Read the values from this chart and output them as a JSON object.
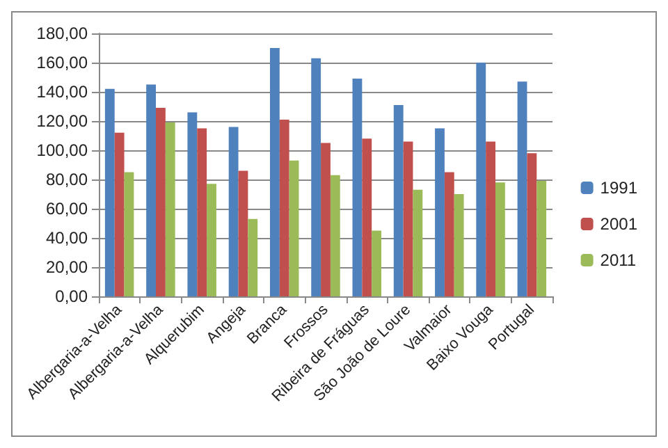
{
  "chart_data": {
    "type": "bar",
    "categories": [
      "Albergaria-a-Velha",
      "Albergaria-a-Velha",
      "Alquerubim",
      "Angeja",
      "Branca",
      "Frossos",
      "Ribeira de Fráguas",
      "São João de Loure",
      "Valmaior",
      "Baixo Vouga",
      "Portugal"
    ],
    "series": [
      {
        "name": "1991",
        "color": "#4f81bd",
        "values": [
          142,
          145,
          126,
          116,
          170,
          163,
          149,
          131,
          115,
          160,
          147
        ]
      },
      {
        "name": "2001",
        "color": "#c0504d",
        "values": [
          112,
          129,
          115,
          86,
          121,
          105,
          108,
          106,
          85,
          106,
          98
        ]
      },
      {
        "name": "2011",
        "color": "#9bbb59",
        "values": [
          85,
          119,
          77,
          53,
          93,
          83,
          45,
          73,
          70,
          78,
          79
        ]
      }
    ],
    "ylim": [
      0,
      180
    ],
    "yticks": [
      {
        "value": 0,
        "label": "0,00"
      },
      {
        "value": 20,
        "label": "20,00"
      },
      {
        "value": 40,
        "label": "40,00"
      },
      {
        "value": 60,
        "label": "60,00"
      },
      {
        "value": 80,
        "label": "80,00"
      },
      {
        "value": 100,
        "label": "100,00"
      },
      {
        "value": 120,
        "label": "120,00"
      },
      {
        "value": 140,
        "label": "140,00"
      },
      {
        "value": 160,
        "label": "160,00"
      },
      {
        "value": 180,
        "label": "180,00"
      }
    ],
    "grid": "y",
    "legend": "right"
  }
}
